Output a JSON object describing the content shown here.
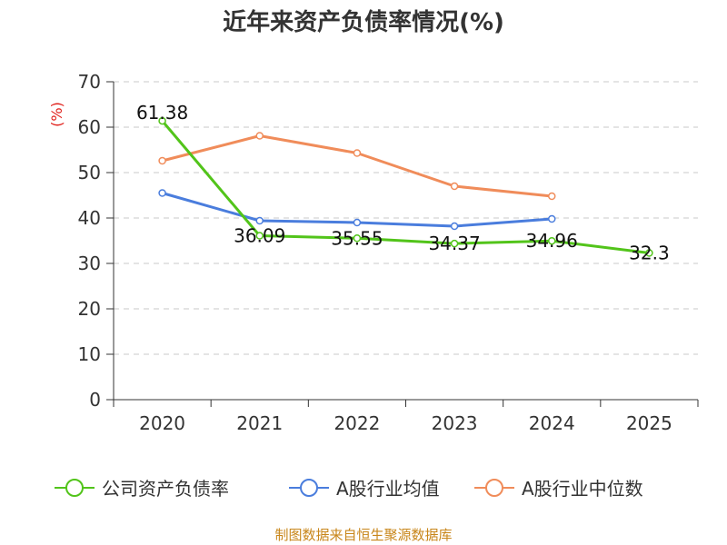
{
  "chart_data": {
    "type": "line",
    "title": "近年来资产负债率情况(%)",
    "ylabel": "(%)",
    "xlabel": "",
    "ylim": [
      0,
      70
    ],
    "yticks": [
      0,
      10,
      20,
      30,
      40,
      50,
      60,
      70
    ],
    "categories": [
      "2020",
      "2021",
      "2022",
      "2023",
      "2024",
      "2025"
    ],
    "grid": true,
    "legend_position": "bottom",
    "series": [
      {
        "name": "公司资产负债率",
        "color": "#52c41a",
        "values": [
          61.38,
          36.09,
          35.55,
          34.37,
          34.96,
          32.3
        ],
        "labels": [
          "61.38",
          "36.09",
          "35.55",
          "34.37",
          "34.96",
          "32.3"
        ]
      },
      {
        "name": "A股行业均值",
        "color": "#4a7ddd",
        "values": [
          45.5,
          39.4,
          39.0,
          38.2,
          39.8,
          null
        ]
      },
      {
        "name": "A股行业中位数",
        "color": "#f08c5a",
        "values": [
          52.6,
          58.1,
          54.3,
          47.0,
          44.8,
          null
        ]
      }
    ],
    "source": "制图数据来自恒生聚源数据库"
  }
}
